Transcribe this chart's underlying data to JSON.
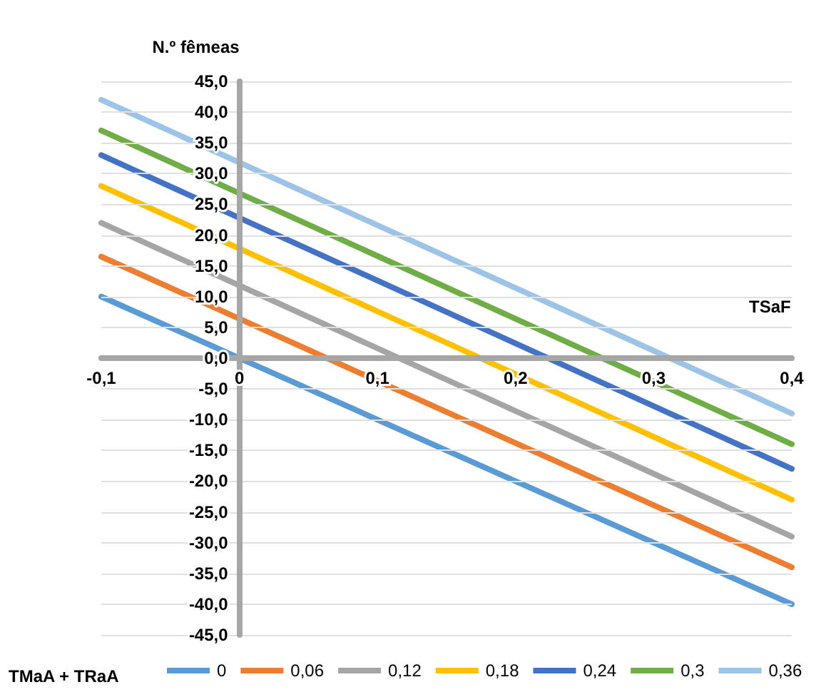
{
  "chart_data": {
    "type": "line",
    "xlabel": "TSaF",
    "ylabel": "N.º fêmeas",
    "legend_title": "TMaA + TRaA",
    "xlim": [
      -0.1,
      0.4
    ],
    "xticks": [
      {
        "value": -0.1,
        "label": "-0,1"
      },
      0,
      {
        "value": 0.1,
        "label": "0,1"
      },
      {
        "value": 0.2,
        "label": "0,2"
      },
      {
        "value": 0.3,
        "label": "0,3"
      },
      {
        "value": 0.4,
        "label": "0,4"
      }
    ],
    "ylim": [
      -45,
      45
    ],
    "yticks": [
      {
        "value": -45,
        "label": "-45,0"
      },
      {
        "value": -40,
        "label": "-40,0"
      },
      {
        "value": -35,
        "label": "-35,0"
      },
      {
        "value": -30,
        "label": "-30,0"
      },
      {
        "value": -25,
        "label": "-25,0"
      },
      {
        "value": -20,
        "label": "-20,0"
      },
      {
        "value": -15,
        "label": "-15,0"
      },
      {
        "value": -10,
        "label": "-10,0"
      },
      {
        "value": -5,
        "label": "-5,0"
      },
      {
        "value": 0,
        "label": "0,0"
      },
      {
        "value": 5,
        "label": "5,0"
      },
      {
        "value": 10,
        "label": "10,0"
      },
      {
        "value": 15,
        "label": "15,0"
      },
      {
        "value": 20,
        "label": "20,0"
      },
      {
        "value": 25,
        "label": "25,0"
      },
      {
        "value": 30,
        "label": "30,0"
      },
      {
        "value": 35,
        "label": "35,0"
      },
      {
        "value": 40,
        "label": "40,0"
      },
      {
        "value": 45,
        "label": "45,0"
      }
    ],
    "x": [
      -0.1,
      0.4
    ],
    "series": [
      {
        "name": "0",
        "color": "#5b9bd5",
        "values": [
          10,
          -40
        ]
      },
      {
        "name": "0,06",
        "color": "#ed7d31",
        "values": [
          16.5,
          -34
        ]
      },
      {
        "name": "0,12",
        "color": "#a5a5a5",
        "values": [
          22,
          -29
        ]
      },
      {
        "name": "0,18",
        "color": "#ffc000",
        "values": [
          28,
          -23
        ]
      },
      {
        "name": "0,24",
        "color": "#4472c4",
        "values": [
          33,
          -18
        ]
      },
      {
        "name": "0,3",
        "color": "#70ad47",
        "values": [
          37,
          -14
        ]
      },
      {
        "name": "0,36",
        "color": "#9dc3e6",
        "values": [
          42,
          -9
        ]
      }
    ],
    "grid": "y",
    "legend": "bottom",
    "marker": "none",
    "line_style": "solid"
  }
}
